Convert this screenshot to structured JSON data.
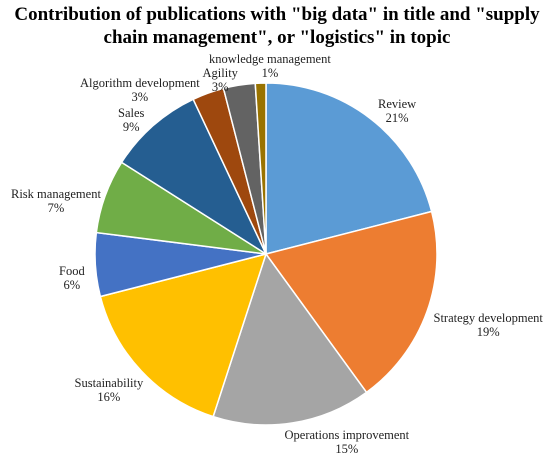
{
  "chart_data": {
    "type": "pie",
    "title_lines": [
      "Contribution of publications with \"big data\" in title and \"supply",
      "chain management\", or \"logistics\" in topic"
    ],
    "slices": [
      {
        "label": "Review",
        "value": 21,
        "value_label": "21%",
        "color": "#5B9BD5"
      },
      {
        "label": "Strategy development",
        "value": 19,
        "value_label": "19%",
        "color": "#ED7D31"
      },
      {
        "label": "Operations improvement",
        "value": 15,
        "value_label": "15%",
        "color": "#A5A5A5"
      },
      {
        "label": "Sustainability",
        "value": 16,
        "value_label": "16%",
        "color": "#FFC000"
      },
      {
        "label": "Food",
        "value": 6,
        "value_label": "6%",
        "color": "#4472C4"
      },
      {
        "label": "Risk management",
        "value": 7,
        "value_label": "7%",
        "color": "#70AD47"
      },
      {
        "label": "Sales",
        "value": 9,
        "value_label": "9%",
        "color": "#255E91"
      },
      {
        "label": "Algorithm development",
        "value": 3,
        "value_label": "3%",
        "color": "#9E480E"
      },
      {
        "label": "Agility",
        "value": 3,
        "value_label": "3%",
        "color": "#636363"
      },
      {
        "label": "knowledge management",
        "value": 1,
        "value_label": "1%",
        "color": "#997300"
      }
    ]
  }
}
